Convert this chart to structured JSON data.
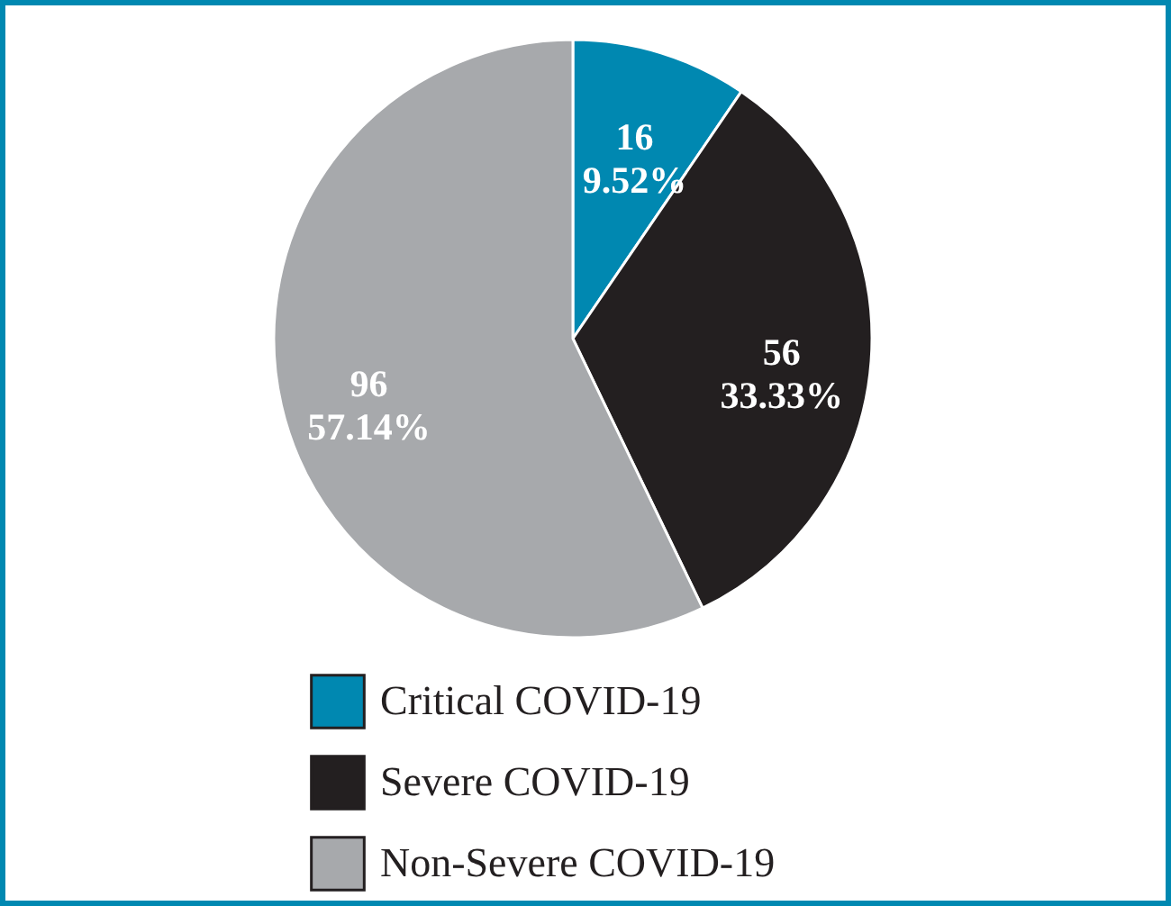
{
  "chart_data": {
    "type": "pie",
    "categories": [
      "Critical COVID-19",
      "Severe COVID-19",
      "Non-Severe COVID-19"
    ],
    "values": [
      16,
      56,
      96
    ],
    "colors": [
      "#0088b1",
      "#231f20",
      "#a7a9ac"
    ],
    "value_labels": [
      "16\n9.52%",
      "56\n33.33%",
      "96\n57.14%"
    ],
    "legend": "bottom"
  }
}
